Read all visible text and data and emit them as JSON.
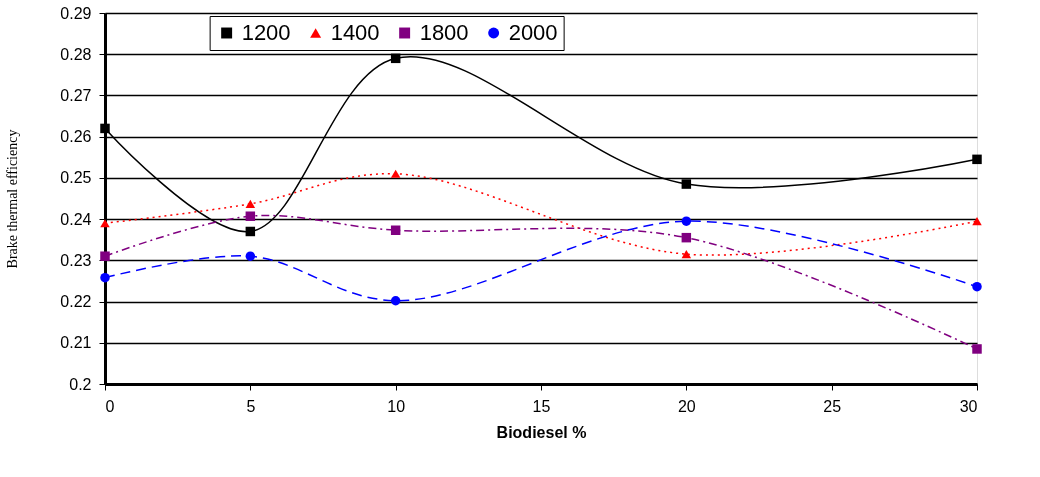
{
  "chart_data": {
    "type": "line",
    "xlabel": "Biodiesel %",
    "ylabel": "Brake thermal efficiency",
    "x": [
      0,
      5,
      10,
      20,
      30
    ],
    "series": [
      {
        "name": "1200",
        "color": "#000000",
        "marker": "square",
        "line_style": "solid",
        "values": [
          0.262,
          0.237,
          0.279,
          0.2485,
          0.2545
        ]
      },
      {
        "name": "1400",
        "color": "#ff0000",
        "marker": "triangle",
        "line_style": "dotted",
        "values": [
          0.239,
          0.2437,
          0.251,
          0.2315,
          0.2395
        ]
      },
      {
        "name": "1800",
        "color": "#800080",
        "marker": "square",
        "line_style": "dashdot",
        "values": [
          0.231,
          0.2407,
          0.2373,
          0.2355,
          0.2085
        ]
      },
      {
        "name": "2000",
        "color": "#0000ff",
        "marker": "circle",
        "line_style": "dashed",
        "values": [
          0.2258,
          0.231,
          0.2202,
          0.2395,
          0.2236
        ]
      }
    ],
    "xlim": [
      0,
      30
    ],
    "xticks": [
      0,
      5,
      10,
      15,
      20,
      25,
      30
    ],
    "ylim": [
      0.2,
      0.29
    ],
    "yticks": [
      0.2,
      0.21,
      0.22,
      0.23,
      0.24,
      0.25,
      0.26,
      0.27,
      0.28,
      0.29
    ],
    "grid": "y",
    "legend": "top"
  }
}
